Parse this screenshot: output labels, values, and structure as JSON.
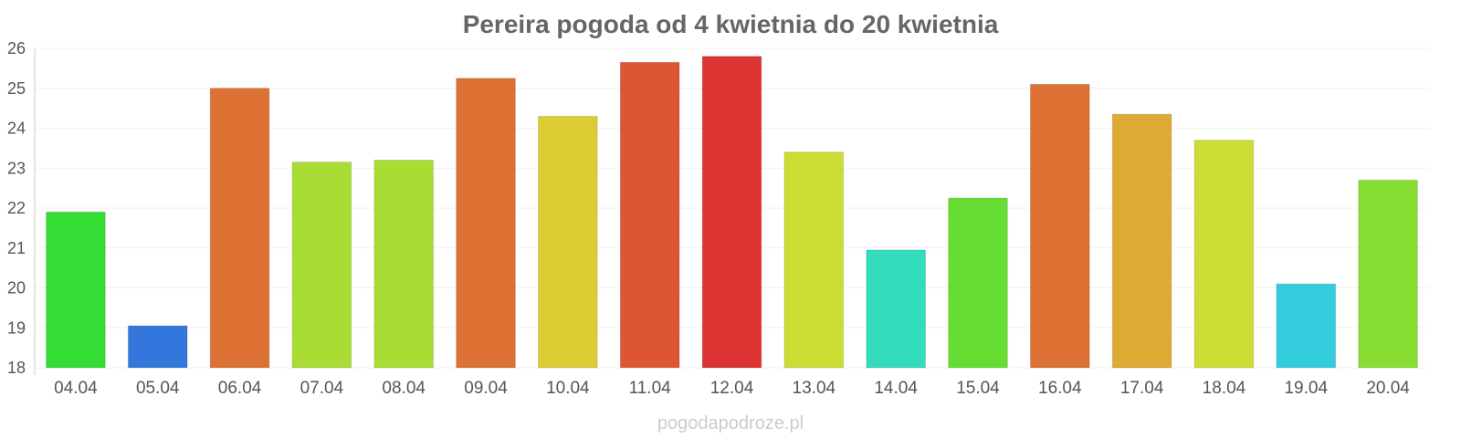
{
  "chart_data": {
    "type": "bar",
    "title": "Pereira pogoda od 4 kwietnia do 20 kwietnia",
    "xlabel": "",
    "ylabel": "",
    "ylim": [
      18,
      26
    ],
    "yticks": [
      "18",
      "19",
      "20",
      "21",
      "22",
      "23",
      "24",
      "25",
      "26"
    ],
    "grid": true,
    "categories": [
      "04.04",
      "05.04",
      "06.04",
      "07.04",
      "08.04",
      "09.04",
      "10.04",
      "11.04",
      "12.04",
      "13.04",
      "14.04",
      "15.04",
      "16.04",
      "17.04",
      "18.04",
      "19.04",
      "20.04"
    ],
    "values": [
      21.9,
      19.05,
      25.0,
      23.15,
      23.2,
      25.25,
      24.3,
      25.65,
      25.8,
      23.4,
      20.95,
      22.25,
      25.1,
      24.35,
      23.7,
      20.1,
      22.7
    ],
    "colors": [
      "#33dd33",
      "#3377dd",
      "#dd7033",
      "#aadd33",
      "#aadd33",
      "#dd7033",
      "#ddcc33",
      "#dd5533",
      "#dd3333",
      "#ccdd33",
      "#33ddbb",
      "#66dd33",
      "#dd7033",
      "#ddaa33",
      "#ccdd33",
      "#33ccdd",
      "#88dd33"
    ]
  },
  "footer": {
    "credit": "pogodapodroze.pl"
  }
}
